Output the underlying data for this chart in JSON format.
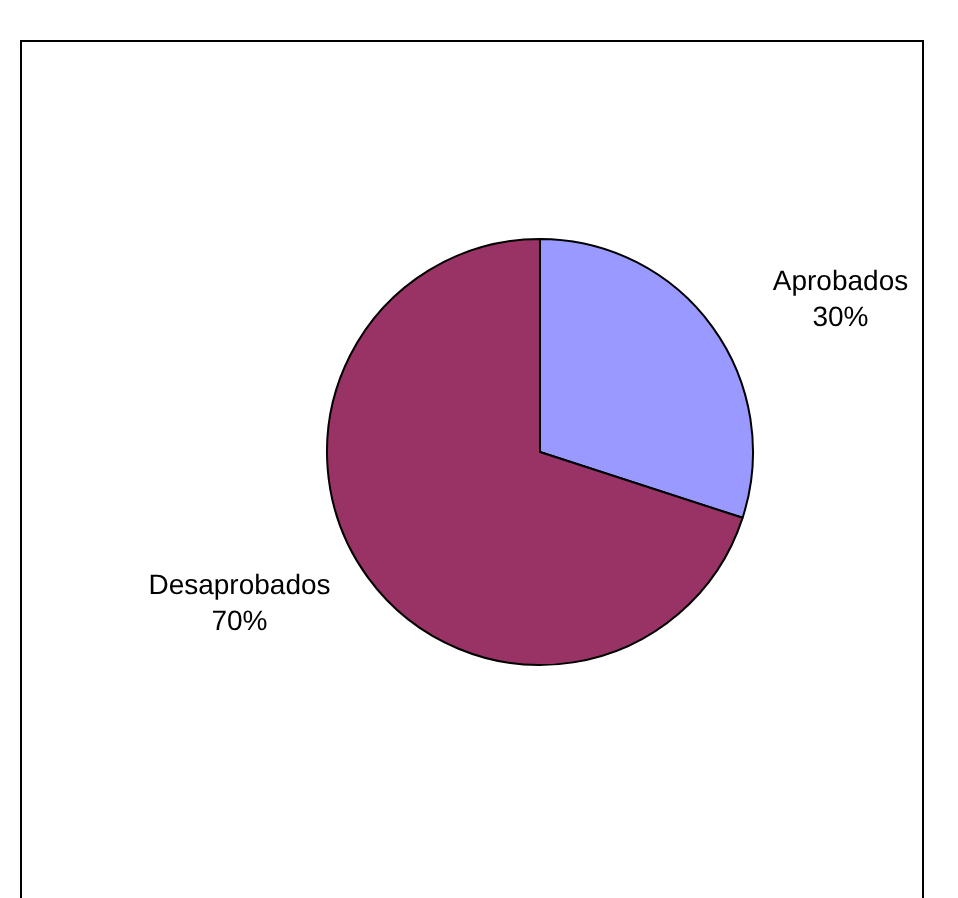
{
  "chart_data": {
    "type": "pie",
    "categories": [
      "Aprobados",
      "Desaprobados"
    ],
    "values": [
      30,
      70
    ],
    "colors": [
      "#9999ff",
      "#993366"
    ],
    "value_labels": [
      "30%",
      "70%"
    ],
    "legend": false
  }
}
